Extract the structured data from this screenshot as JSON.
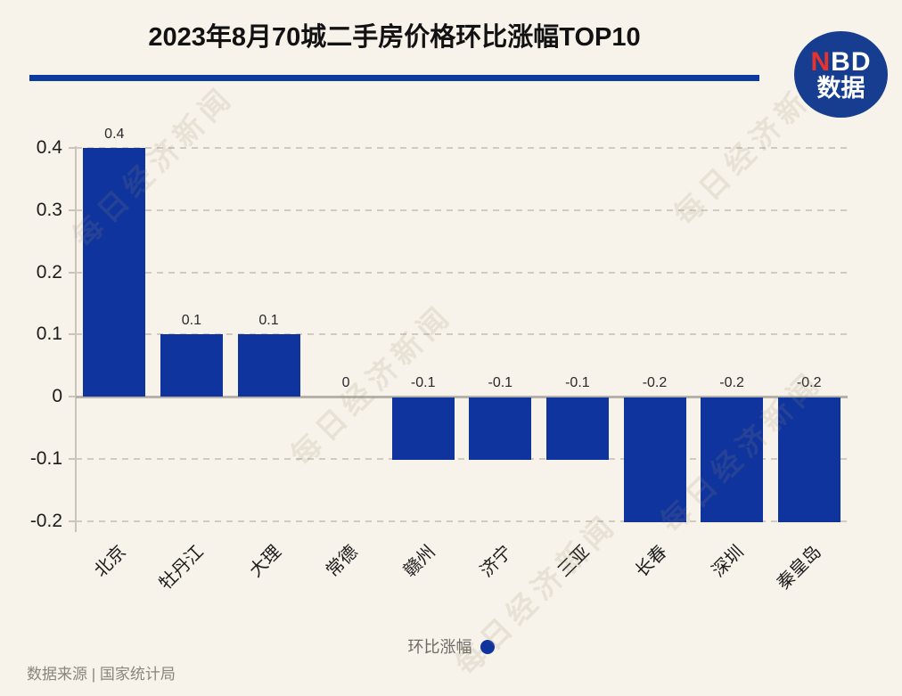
{
  "header": {
    "title": "2023年8月70城二手房价格环比涨幅TOP10",
    "logo": {
      "n": "N",
      "bd": "BD",
      "bottom": "数据"
    }
  },
  "chart_data": {
    "type": "bar",
    "title": "2023年8月70城二手房价格环比涨幅TOP10",
    "categories": [
      "北京",
      "牡丹江",
      "大理",
      "常德",
      "赣州",
      "济宁",
      "三亚",
      "长春",
      "深圳",
      "秦皇岛"
    ],
    "values": [
      0.4,
      0.1,
      0.1,
      0,
      -0.1,
      -0.1,
      -0.1,
      -0.2,
      -0.2,
      -0.2
    ],
    "value_labels": [
      "0.4",
      "0.1",
      "0.1",
      "0",
      "-0.1",
      "-0.1",
      "-0.1",
      "-0.2",
      "-0.2",
      "-0.2"
    ],
    "series": [
      {
        "name": "环比涨幅",
        "values": [
          0.4,
          0.1,
          0.1,
          0,
          -0.1,
          -0.1,
          -0.1,
          -0.2,
          -0.2,
          -0.2
        ]
      }
    ],
    "xlabel": "",
    "ylabel": "",
    "y_ticks": [
      0.4,
      0.3,
      0.2,
      0.1,
      0,
      -0.1,
      -0.2
    ],
    "y_tick_labels": [
      "0.4",
      "0.3",
      "0.2",
      "0.1",
      "0",
      "-0.1",
      "-0.2"
    ],
    "ylim": [
      -0.2,
      0.4
    ],
    "grid": "horizontal-dashed",
    "legend_position": "bottom-center",
    "bar_color": "#10349e"
  },
  "legend": {
    "label": "环比涨幅",
    "dot_color": "#10349e"
  },
  "footer": {
    "source": "数据来源 | 国家统计局"
  },
  "watermark": {
    "text": "每日经济新闻"
  },
  "colors": {
    "background": "#f7f2ea",
    "accent_blue": "#0d3a9e",
    "bar_blue": "#10349e",
    "logo_blue": "#163d8f",
    "logo_red": "#e8332a"
  }
}
